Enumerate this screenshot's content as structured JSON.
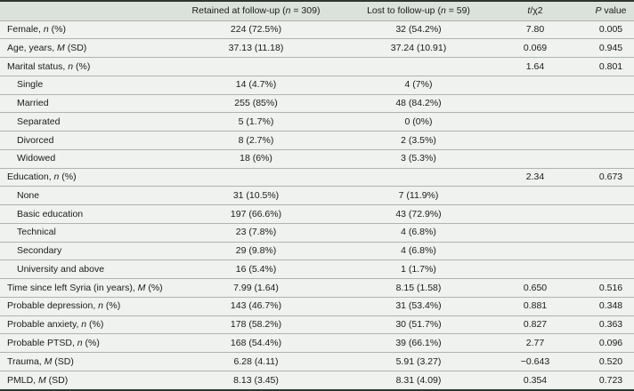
{
  "table": {
    "columns": [
      {
        "label": ""
      },
      {
        "label": "Retained at follow-up (*n* = 309)"
      },
      {
        "label": "Lost to follow-up (*n* = 59)"
      },
      {
        "label": "*t*/χ2"
      },
      {
        "label": "*P* value"
      }
    ],
    "rows": [
      {
        "label": "Female, *n* (%)",
        "retained": "224 (72.5%)",
        "lost": "32 (54.2%)",
        "stat": "7.80",
        "p": "0.005"
      },
      {
        "label": "Age, years, *M* (SD)",
        "retained": "37.13 (11.18)",
        "lost": "37.24 (10.91)",
        "stat": "0.069",
        "p": "0.945"
      },
      {
        "label": "Marital status, *n* (%)",
        "retained": "",
        "lost": "",
        "stat": "1.64",
        "p": "0.801"
      },
      {
        "label": "Single",
        "retained": "14 (4.7%)",
        "lost": "4 (7%)",
        "stat": "",
        "p": ""
      },
      {
        "label": "Married",
        "retained": "255 (85%)",
        "lost": "48 (84.2%)",
        "stat": "",
        "p": ""
      },
      {
        "label": "Separated",
        "retained": "5 (1.7%)",
        "lost": "0 (0%)",
        "stat": "",
        "p": ""
      },
      {
        "label": "Divorced",
        "retained": "8 (2.7%)",
        "lost": "2 (3.5%)",
        "stat": "",
        "p": ""
      },
      {
        "label": "Widowed",
        "retained": "18 (6%)",
        "lost": "3 (5.3%)",
        "stat": "",
        "p": ""
      },
      {
        "label": "Education, *n* (%)",
        "retained": "",
        "lost": "",
        "stat": "2.34",
        "p": "0.673"
      },
      {
        "label": "None",
        "retained": "31 (10.5%)",
        "lost": "7 (11.9%)",
        "stat": "",
        "p": ""
      },
      {
        "label": "Basic education",
        "retained": "197 (66.6%)",
        "lost": "43 (72.9%)",
        "stat": "",
        "p": ""
      },
      {
        "label": "Technical",
        "retained": "23 (7.8%)",
        "lost": "4 (6.8%)",
        "stat": "",
        "p": ""
      },
      {
        "label": "Secondary",
        "retained": "29 (9.8%)",
        "lost": "4 (6.8%)",
        "stat": "",
        "p": ""
      },
      {
        "label": "University and above",
        "retained": "16 (5.4%)",
        "lost": "1 (1.7%)",
        "stat": "",
        "p": ""
      },
      {
        "label": "Time since left Syria (in years), *M* (%)",
        "retained": "7.99 (1.64)",
        "lost": "8.15 (1.58)",
        "stat": "0.650",
        "p": "0.516"
      },
      {
        "label": "Probable depression, *n* (%)",
        "retained": "143 (46.7%)",
        "lost": "31 (53.4%)",
        "stat": "0.881",
        "p": "0.348"
      },
      {
        "label": "Probable anxiety, *n* (%)",
        "retained": "178 (58.2%)",
        "lost": "30 (51.7%)",
        "stat": "0.827",
        "p": "0.363"
      },
      {
        "label": "Probable PTSD, *n* (%)",
        "retained": "168 (54.4%)",
        "lost": "39 (66.1%)",
        "stat": "2.77",
        "p": "0.096"
      },
      {
        "label": "Trauma, *M* (SD)",
        "retained": "6.28 (4.11)",
        "lost": "5.91 (3.27)",
        "stat": "−0.643",
        "p": "0.520"
      },
      {
        "label": "PMLD, *M* (SD)",
        "retained": "8.13 (3.45)",
        "lost": "8.31 (4.09)",
        "stat": "0.354",
        "p": "0.723"
      }
    ]
  },
  "colors": {
    "header_bg": "#dbe2db",
    "row_bg": "#eff2ee",
    "hairline": "#adb4ad",
    "rule_dark": "#2e3331",
    "text": "#1b1b1b"
  }
}
